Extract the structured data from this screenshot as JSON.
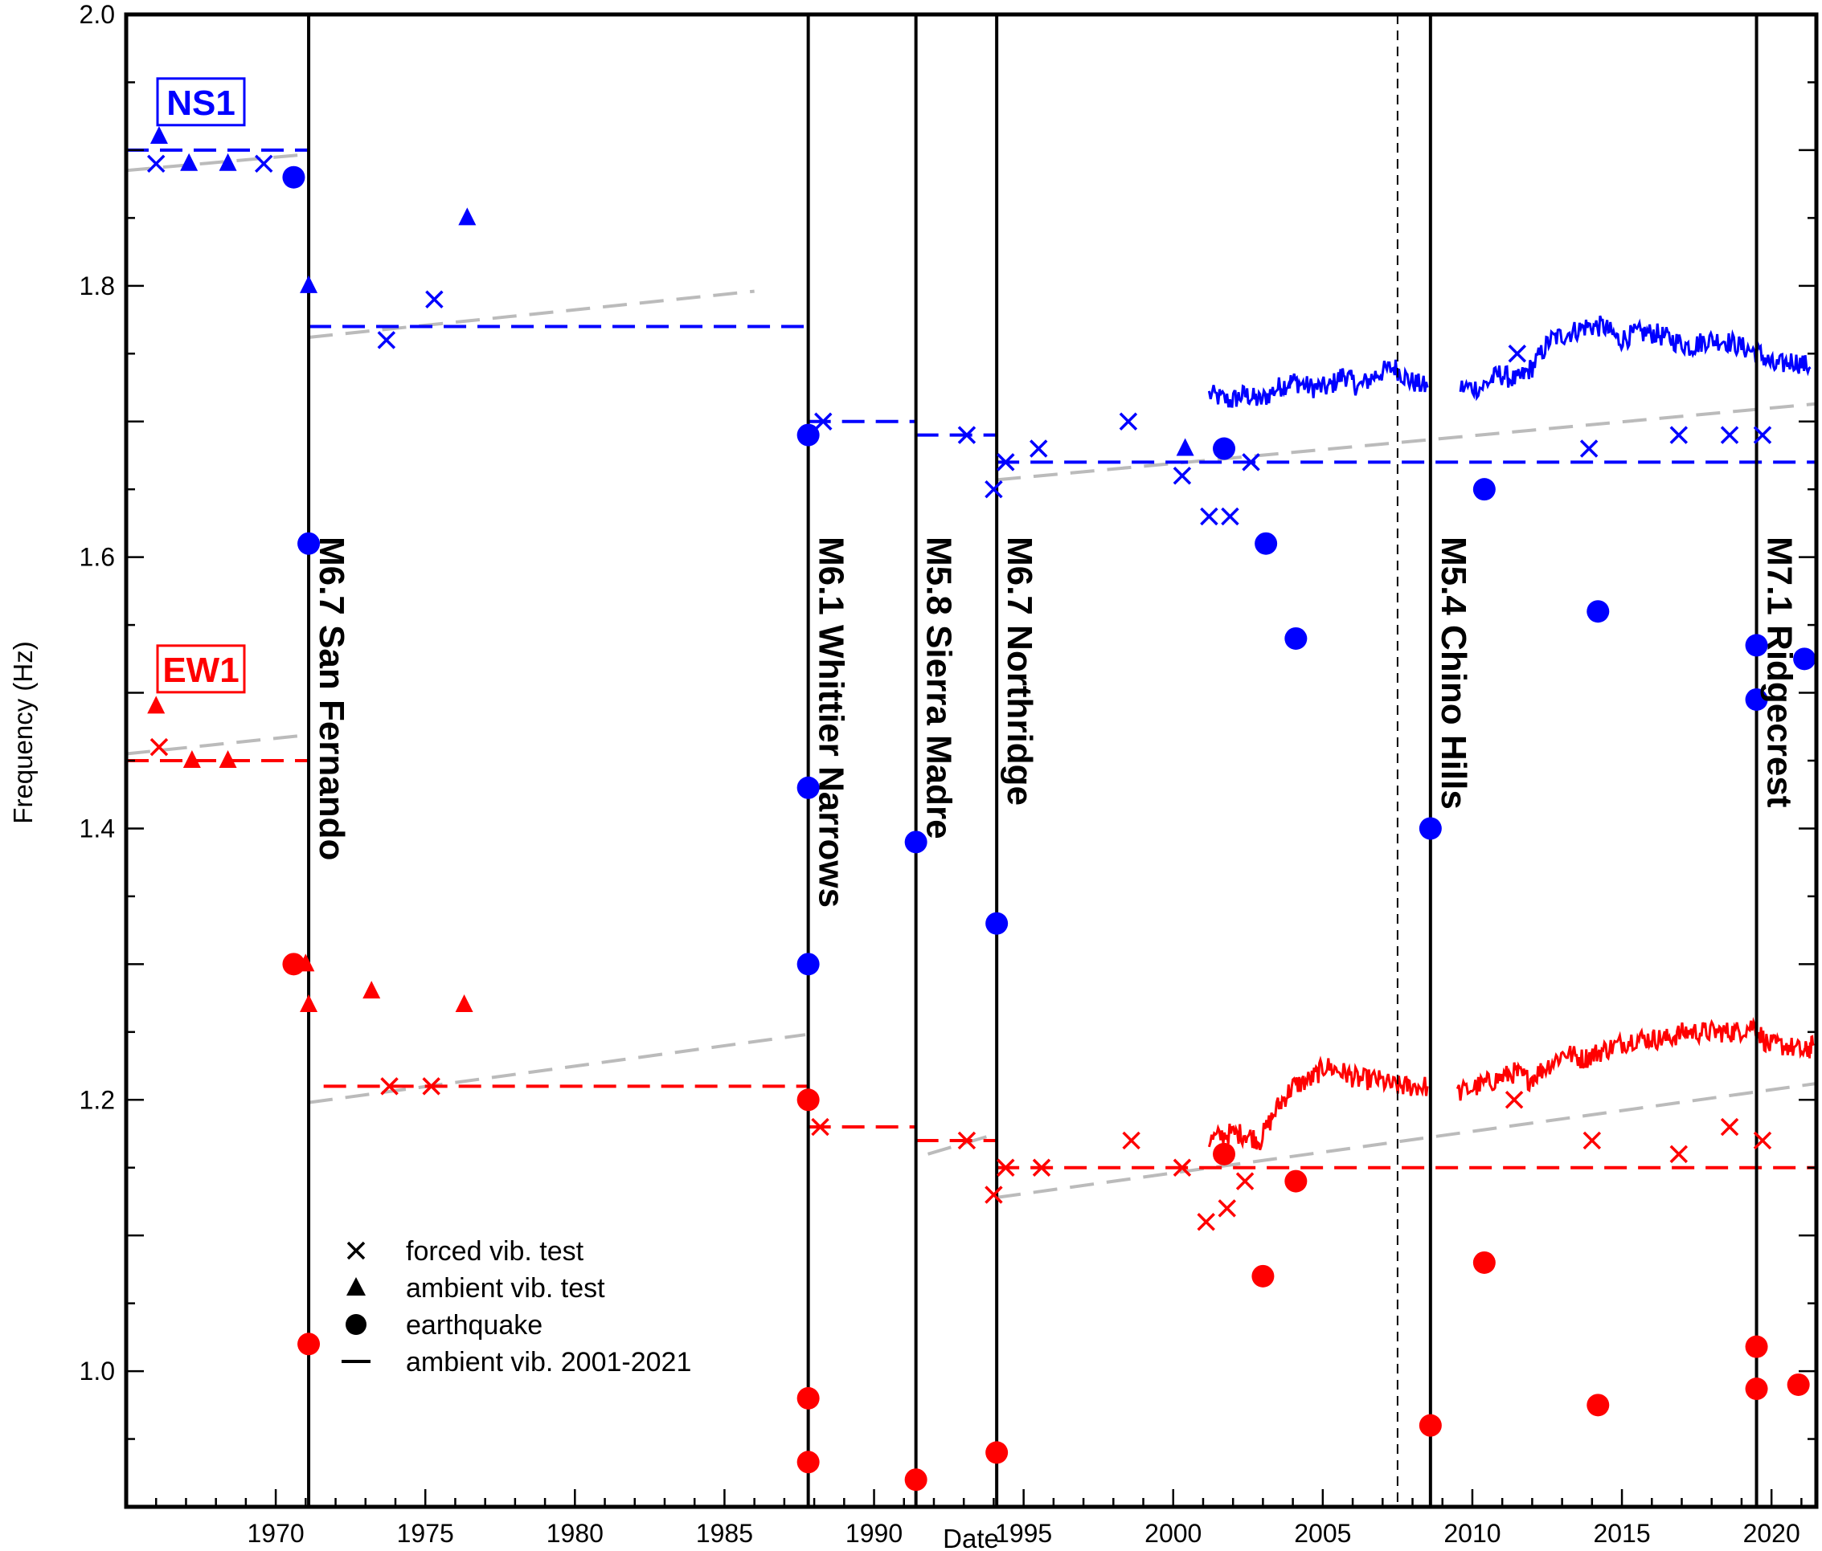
{
  "chart_data": {
    "type": "scatter",
    "xlabel": "Date",
    "ylabel": "Frequency (Hz)",
    "xlim": [
      1965.0,
      2021.5
    ],
    "ylim": [
      0.9,
      2.0
    ],
    "xticks": [
      1970,
      1975,
      1980,
      1985,
      1990,
      1995,
      2000,
      2005,
      2010,
      2015,
      2020
    ],
    "yticks": [
      1.0,
      1.2,
      1.4,
      1.6,
      1.8,
      2.0
    ],
    "ytick_labels": [
      "1.0",
      "1.2",
      "1.4",
      "1.6",
      "1.8",
      "2.0"
    ],
    "grid": false,
    "colors": {
      "NS1": "#0000ff",
      "EW1": "#ff0000",
      "trend": "#bbbbbb",
      "event": "#000000"
    },
    "component_labels": [
      {
        "text": "NS1",
        "color": "#0000ff"
      },
      {
        "text": "EW1",
        "color": "#ff0000"
      }
    ],
    "earthquakes": [
      {
        "x": 1971.1,
        "label": "M6.7 San Fernando"
      },
      {
        "x": 1987.8,
        "label": "M6.1 Whittier Narrows"
      },
      {
        "x": 1991.4,
        "label": "M5.8 Sierra Madre"
      },
      {
        "x": 1994.1,
        "label": "M6.7 Northridge"
      },
      {
        "x": 2008.6,
        "label": "M5.4 Chino Hills"
      },
      {
        "x": 2019.5,
        "label": "M7.1 Ridgecrest"
      }
    ],
    "dashed_marker_x": 2007.5,
    "legend": {
      "position": "bottom-left",
      "entries": [
        {
          "marker": "cross",
          "label": "forced vib. test"
        },
        {
          "marker": "triangle",
          "label": "ambient vib. test"
        },
        {
          "marker": "circle",
          "label": "earthquake"
        },
        {
          "marker": "line",
          "label": "ambient vib. 2001-2021"
        }
      ]
    },
    "series": [
      {
        "name": "NS1",
        "color": "#0000ff",
        "forced": [
          [
            1966.0,
            1.89
          ],
          [
            1969.6,
            1.89
          ],
          [
            1973.7,
            1.76
          ],
          [
            1975.3,
            1.79
          ],
          [
            1988.3,
            1.7
          ],
          [
            1993.1,
            1.69
          ],
          [
            1994.0,
            1.65
          ],
          [
            1994.4,
            1.67
          ],
          [
            1995.5,
            1.68
          ],
          [
            1998.5,
            1.7
          ],
          [
            2000.3,
            1.66
          ],
          [
            2001.2,
            1.63
          ],
          [
            2001.9,
            1.63
          ],
          [
            2002.6,
            1.67
          ],
          [
            2011.5,
            1.75
          ],
          [
            2013.9,
            1.68
          ],
          [
            2016.9,
            1.69
          ],
          [
            2018.6,
            1.69
          ],
          [
            2019.7,
            1.69
          ]
        ],
        "ambient": [
          [
            1966.1,
            1.91
          ],
          [
            1967.1,
            1.89
          ],
          [
            1968.4,
            1.89
          ],
          [
            1971.1,
            1.8
          ],
          [
            1976.4,
            1.85
          ],
          [
            2000.4,
            1.68
          ]
        ],
        "earthquake": [
          [
            1970.6,
            1.88
          ],
          [
            1971.1,
            1.61
          ],
          [
            1987.8,
            1.69
          ],
          [
            1987.8,
            1.43
          ],
          [
            1987.8,
            1.3
          ],
          [
            1991.4,
            1.39
          ],
          [
            1994.1,
            1.33
          ],
          [
            2001.7,
            1.68
          ],
          [
            2003.1,
            1.61
          ],
          [
            2004.1,
            1.54
          ],
          [
            2008.6,
            1.4
          ],
          [
            2010.4,
            1.65
          ],
          [
            2014.2,
            1.56
          ],
          [
            2019.5,
            1.535
          ],
          [
            2019.5,
            1.495
          ],
          [
            2021.1,
            1.525
          ]
        ],
        "step_levels": [
          [
            1965.0,
            1971.1,
            1.9
          ],
          [
            1971.1,
            1987.8,
            1.77
          ],
          [
            1987.8,
            1991.4,
            1.7
          ],
          [
            1991.4,
            1994.1,
            1.69
          ],
          [
            1994.1,
            2021.5,
            1.67
          ]
        ],
        "trend_lines": [
          [
            1965.0,
            1.885,
            1971.1,
            1.897
          ],
          [
            1971.1,
            1.762,
            1986.0,
            1.796
          ],
          [
            1994.1,
            1.657,
            2021.5,
            1.713
          ]
        ],
        "ambient_2001_2021": [
          [
            2001.2,
            1.72
          ],
          [
            2001.9,
            1.715
          ],
          [
            2002.4,
            1.72
          ],
          [
            2002.9,
            1.715
          ],
          [
            2003.5,
            1.725
          ],
          [
            2004.0,
            1.73
          ],
          [
            2004.6,
            1.725
          ],
          [
            2005.2,
            1.725
          ],
          [
            2005.7,
            1.735
          ],
          [
            2006.2,
            1.725
          ],
          [
            2006.8,
            1.735
          ],
          [
            2007.4,
            1.74
          ],
          [
            2007.9,
            1.73
          ],
          [
            2008.5,
            1.725
          ],
          [
            2009.6,
            1.725
          ],
          [
            2010.3,
            1.725
          ],
          [
            2010.9,
            1.735
          ],
          [
            2011.5,
            1.73
          ],
          [
            2012.0,
            1.74
          ],
          [
            2012.6,
            1.76
          ],
          [
            2013.2,
            1.765
          ],
          [
            2013.8,
            1.77
          ],
          [
            2014.4,
            1.77
          ],
          [
            2014.9,
            1.76
          ],
          [
            2015.5,
            1.765
          ],
          [
            2016.1,
            1.765
          ],
          [
            2016.7,
            1.76
          ],
          [
            2017.3,
            1.755
          ],
          [
            2017.8,
            1.76
          ],
          [
            2018.4,
            1.76
          ],
          [
            2019.0,
            1.755
          ],
          [
            2019.6,
            1.75
          ],
          [
            2020.1,
            1.74
          ],
          [
            2020.7,
            1.745
          ],
          [
            2021.3,
            1.74
          ]
        ]
      },
      {
        "name": "EW1",
        "color": "#ff0000",
        "forced": [
          [
            1966.1,
            1.46
          ],
          [
            1973.8,
            1.21
          ],
          [
            1975.2,
            1.21
          ],
          [
            1988.2,
            1.18
          ],
          [
            1993.1,
            1.17
          ],
          [
            1994.0,
            1.13
          ],
          [
            1994.4,
            1.15
          ],
          [
            1995.6,
            1.15
          ],
          [
            1998.6,
            1.17
          ],
          [
            2000.3,
            1.15
          ],
          [
            2001.1,
            1.11
          ],
          [
            2001.8,
            1.12
          ],
          [
            2002.4,
            1.14
          ],
          [
            2011.4,
            1.2
          ],
          [
            2014.0,
            1.17
          ],
          [
            2016.9,
            1.16
          ],
          [
            2018.6,
            1.18
          ],
          [
            2019.7,
            1.17
          ]
        ],
        "ambient": [
          [
            1966.0,
            1.49
          ],
          [
            1967.2,
            1.45
          ],
          [
            1968.4,
            1.45
          ],
          [
            1971.0,
            1.3
          ],
          [
            1971.1,
            1.27
          ],
          [
            1973.2,
            1.28
          ],
          [
            1976.3,
            1.27
          ]
        ],
        "earthquake": [
          [
            1970.6,
            1.3
          ],
          [
            1971.1,
            1.02
          ],
          [
            1987.8,
            1.2
          ],
          [
            1987.8,
            0.98
          ],
          [
            1987.8,
            0.933
          ],
          [
            1991.4,
            0.92
          ],
          [
            1994.1,
            0.94
          ],
          [
            2001.7,
            1.16
          ],
          [
            2003.0,
            1.07
          ],
          [
            2004.1,
            1.14
          ],
          [
            2008.6,
            0.96
          ],
          [
            2010.4,
            1.08
          ],
          [
            2014.2,
            0.975
          ],
          [
            2019.5,
            1.018
          ],
          [
            2019.5,
            0.987
          ],
          [
            2020.9,
            0.99
          ]
        ],
        "step_levels": [
          [
            1965.0,
            1971.1,
            1.45
          ],
          [
            1971.6,
            1987.8,
            1.21
          ],
          [
            1987.8,
            1991.4,
            1.18
          ],
          [
            1991.4,
            1994.1,
            1.17
          ],
          [
            1994.1,
            2021.5,
            1.15
          ]
        ],
        "trend_lines": [
          [
            1965.0,
            1.455,
            1971.1,
            1.469
          ],
          [
            1971.1,
            1.198,
            1987.7,
            1.248
          ],
          [
            1991.8,
            1.16,
            1994.1,
            1.175
          ],
          [
            1994.1,
            1.128,
            2021.5,
            1.212
          ]
        ],
        "ambient_2001_2021": [
          [
            2001.2,
            1.17
          ],
          [
            2001.8,
            1.175
          ],
          [
            2002.4,
            1.175
          ],
          [
            2002.9,
            1.17
          ],
          [
            2003.5,
            1.195
          ],
          [
            2004.0,
            1.21
          ],
          [
            2004.6,
            1.215
          ],
          [
            2005.1,
            1.225
          ],
          [
            2005.7,
            1.22
          ],
          [
            2006.2,
            1.215
          ],
          [
            2006.8,
            1.215
          ],
          [
            2007.4,
            1.21
          ],
          [
            2007.9,
            1.21
          ],
          [
            2008.5,
            1.21
          ],
          [
            2009.5,
            1.205
          ],
          [
            2010.2,
            1.21
          ],
          [
            2010.8,
            1.215
          ],
          [
            2011.4,
            1.22
          ],
          [
            2011.9,
            1.215
          ],
          [
            2012.5,
            1.225
          ],
          [
            2013.1,
            1.235
          ],
          [
            2013.7,
            1.23
          ],
          [
            2014.2,
            1.235
          ],
          [
            2014.8,
            1.24
          ],
          [
            2015.4,
            1.245
          ],
          [
            2016.0,
            1.245
          ],
          [
            2016.5,
            1.245
          ],
          [
            2017.1,
            1.25
          ],
          [
            2017.7,
            1.25
          ],
          [
            2018.3,
            1.25
          ],
          [
            2018.8,
            1.25
          ],
          [
            2019.4,
            1.255
          ],
          [
            2019.9,
            1.24
          ],
          [
            2020.5,
            1.24
          ],
          [
            2021.1,
            1.235
          ],
          [
            2021.4,
            1.24
          ]
        ]
      }
    ]
  }
}
